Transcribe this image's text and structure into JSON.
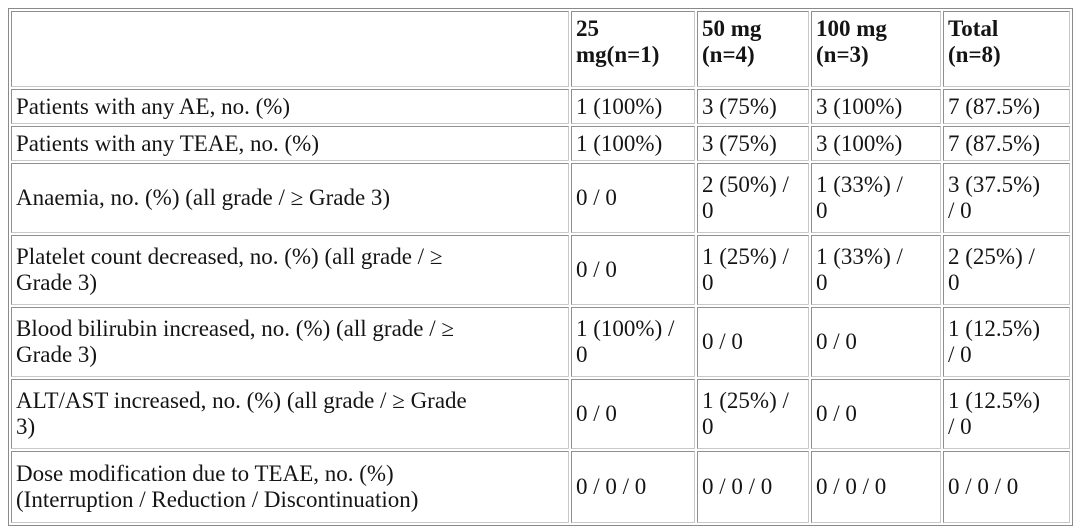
{
  "colors": {
    "background": "#ffffff",
    "text": "#141414",
    "table_outer_border": "#8a8a8a",
    "cell_border": "#9c9c9c"
  },
  "table": {
    "headers": [
      {
        "label": ""
      },
      {
        "label": "25\nmg(n=1)"
      },
      {
        "label": "50 mg\n(n=4)"
      },
      {
        "label": "100 mg\n(n=3)"
      },
      {
        "label": "Total\n(n=8)"
      }
    ],
    "rows": [
      {
        "label": "Patients with any AE, no. (%)",
        "values": [
          "1 (100%)",
          "3 (75%)",
          "3 (100%)",
          "7 (87.5%)"
        ]
      },
      {
        "label": "Patients with any TEAE, no. (%)",
        "values": [
          "1 (100%)",
          "3 (75%)",
          "3 (100%)",
          "7 (87.5%)"
        ]
      },
      {
        "label": "Anaemia, no. (%) (all grade / ≥ Grade 3)",
        "values": [
          "0 / 0",
          "2 (50%) /\n0",
          "1 (33%) /\n0",
          "3 (37.5%)\n/ 0"
        ]
      },
      {
        "label": "Platelet count decreased, no. (%) (all grade / ≥\nGrade 3)",
        "values": [
          "0 / 0",
          "1 (25%) /\n0",
          "1 (33%) /\n0",
          "2 (25%) /\n0"
        ]
      },
      {
        "label": "Blood bilirubin increased, no. (%) (all grade / ≥\nGrade 3)",
        "values": [
          "1 (100%) /\n0",
          "0 / 0",
          "0 / 0",
          "1 (12.5%)\n/ 0"
        ]
      },
      {
        "label": "ALT/AST increased, no. (%) (all grade / ≥ Grade\n3)",
        "values": [
          "0 / 0",
          "1 (25%) /\n0",
          "0 / 0",
          "1 (12.5%)\n/ 0"
        ]
      },
      {
        "label": "Dose modification due to TEAE, no. (%)\n(Interruption / Reduction / Discontinuation)",
        "values": [
          "0 / 0 / 0",
          "0 / 0 / 0",
          "0 / 0 / 0",
          "0 / 0 / 0"
        ]
      }
    ]
  }
}
